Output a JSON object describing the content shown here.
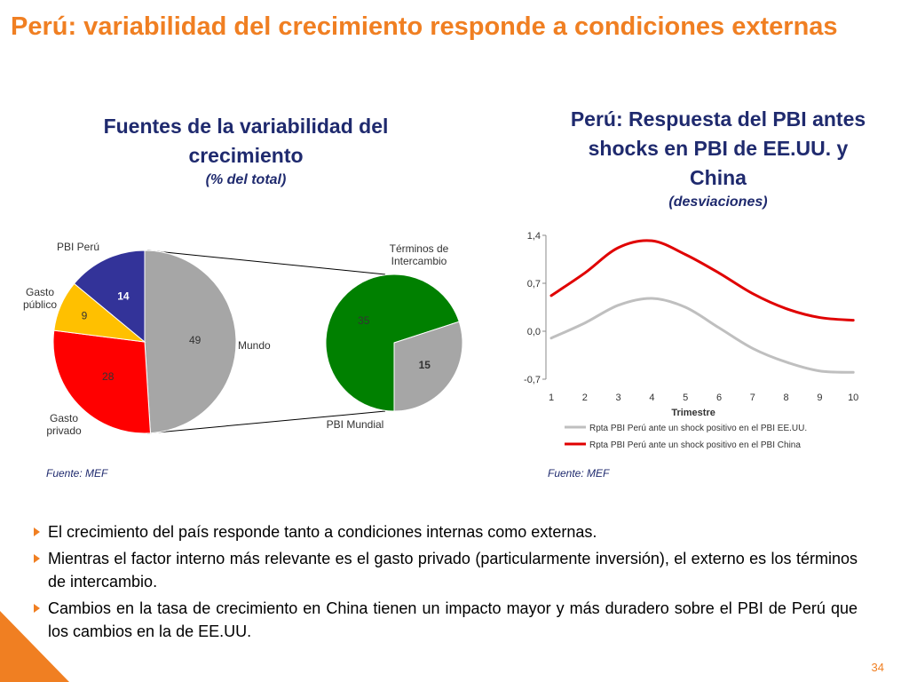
{
  "slide": {
    "title": "Perú: variabilidad del crecimiento responde a condiciones externas",
    "page_number": "34",
    "accent_color": "#f07f22",
    "panel_title_color": "#1f2a6e"
  },
  "left_panel": {
    "title": "Fuentes de la variabilidad del crecimiento",
    "subtitle": "(% del total)",
    "source": "Fuente: MEF"
  },
  "right_panel": {
    "title": "Perú: Respuesta del PBI antes shocks en PBI de EE.UU. y China",
    "subtitle": "(desviaciones)",
    "source": "Fuente: MEF"
  },
  "bullets": [
    "El crecimiento del país responde tanto a condiciones internas como externas.",
    "Mientras el factor interno más relevante es el gasto privado (particularmente inversión), el externo es los términos de intercambio.",
    "Cambios en la tasa de crecimiento en China tienen un impacto mayor y más duradero sobre el PBI de Perú que los cambios en la de EE.UU."
  ],
  "chart_data": [
    {
      "type": "pie",
      "labels": [
        "Mundo",
        "Gasto privado",
        "Gasto público",
        "PBI Perú"
      ],
      "values": [
        49,
        28,
        9,
        14
      ],
      "colors": [
        "#a6a6a6",
        "#ff0000",
        "#ffc000",
        "#333399"
      ],
      "label_lines": {
        "Mundo": [
          "Mundo"
        ],
        "Gasto privado": [
          "Gasto",
          "privado"
        ],
        "Gasto público": [
          "Gasto",
          "público"
        ],
        "PBI Perú": [
          "PBI Perú"
        ]
      }
    },
    {
      "type": "pie",
      "labels": [
        "Términos de Intercambio",
        "PBI Mundial"
      ],
      "values": [
        35,
        15
      ],
      "colors": [
        "#008000",
        "#a6a6a6"
      ],
      "label_lines": {
        "Términos de Intercambio": [
          "Términos de",
          "Intercambio"
        ],
        "PBI Mundial": [
          "PBI Mundial"
        ]
      }
    },
    {
      "type": "line",
      "x": [
        1,
        2,
        3,
        4,
        5,
        6,
        7,
        8,
        9,
        10
      ],
      "xlabel": "Trimestre",
      "ylabel": "",
      "ylim": [
        -0.7,
        1.4
      ],
      "yticks": [
        "1,4",
        "0,7",
        "0,0",
        "-0,7"
      ],
      "ytick_values": [
        1.4,
        0.7,
        0.0,
        -0.7
      ],
      "series": [
        {
          "name": "Rpta PBI Perú ante un shock positivo en el PBI EE.UU.",
          "color": "#bfbfbf",
          "values": [
            -0.1,
            0.12,
            0.38,
            0.48,
            0.35,
            0.05,
            -0.25,
            -0.45,
            -0.58,
            -0.6
          ]
        },
        {
          "name": "Rpta PBI Perú ante un shock positivo en el PBI China",
          "color": "#e00000",
          "values": [
            0.52,
            0.85,
            1.22,
            1.32,
            1.12,
            0.85,
            0.55,
            0.33,
            0.2,
            0.16
          ]
        }
      ],
      "legend_position": "bottom"
    }
  ]
}
